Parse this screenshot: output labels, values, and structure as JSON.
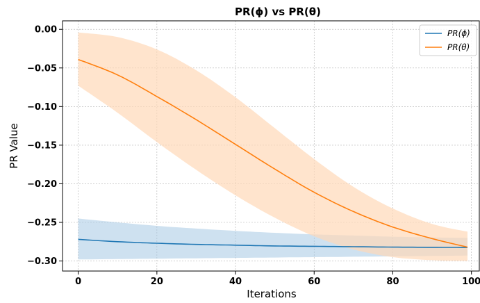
{
  "chart_data": {
    "type": "line",
    "title": "PR(ϕ) vs PR(θ)",
    "xlabel": "Iterations",
    "ylabel": "PR Value",
    "xlim": [
      -4,
      102
    ],
    "ylim": [
      -0.313,
      0.011
    ],
    "xticks": [
      0,
      20,
      40,
      60,
      80,
      100
    ],
    "yticks": [
      0.0,
      -0.05,
      -0.1,
      -0.15,
      -0.2,
      -0.25,
      -0.3
    ],
    "xtick_labels": [
      "0",
      "20",
      "40",
      "60",
      "80",
      "100"
    ],
    "ytick_labels": [
      "0.00",
      "−0.05",
      "−0.10",
      "−0.15",
      "−0.20",
      "−0.25",
      "−0.30"
    ],
    "grid": true,
    "legend_position": "top-right",
    "x": [
      0,
      10,
      20,
      30,
      40,
      50,
      60,
      70,
      80,
      90,
      99
    ],
    "series": [
      {
        "name": "PR(ϕ)",
        "color": "#1f77b4",
        "band_color": "#a6c8e4",
        "mean": [
          -0.272,
          -0.275,
          -0.277,
          -0.2785,
          -0.2795,
          -0.2805,
          -0.281,
          -0.2815,
          -0.282,
          -0.2823,
          -0.2825
        ],
        "upper": [
          -0.245,
          -0.25,
          -0.2545,
          -0.258,
          -0.261,
          -0.2635,
          -0.2655,
          -0.267,
          -0.2685,
          -0.2695,
          -0.27
        ],
        "lower": [
          -0.298,
          -0.2975,
          -0.297,
          -0.2965,
          -0.296,
          -0.2955,
          -0.295,
          -0.2945,
          -0.294,
          -0.2935,
          -0.293
        ]
      },
      {
        "name": "PR(θ)",
        "color": "#ff7f0e",
        "band_color": "#ffd9b8",
        "mean": [
          -0.039,
          -0.059,
          -0.087,
          -0.117,
          -0.149,
          -0.181,
          -0.211,
          -0.236,
          -0.256,
          -0.271,
          -0.282
        ],
        "upper": [
          -0.004,
          -0.01,
          -0.026,
          -0.053,
          -0.088,
          -0.128,
          -0.168,
          -0.204,
          -0.232,
          -0.252,
          -0.262
        ],
        "lower": [
          -0.073,
          -0.108,
          -0.146,
          -0.182,
          -0.215,
          -0.244,
          -0.268,
          -0.285,
          -0.295,
          -0.299,
          -0.3
        ]
      }
    ]
  }
}
